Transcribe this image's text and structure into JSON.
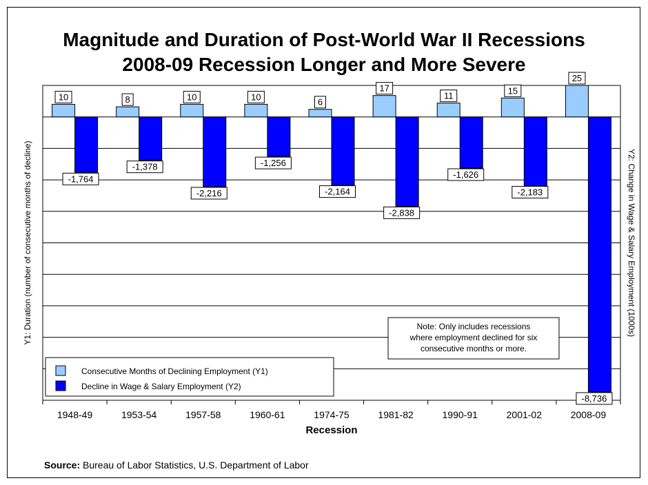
{
  "chart_data": {
    "type": "bar",
    "title": "Magnitude and Duration of Post-World War II Recessions",
    "subtitle": "2008-09 Recession Longer and More Severe",
    "xlabel": "Recession",
    "y1label": "Y1: Duration (number of consecutive months of decline)",
    "y2label": "Y2: Change in Wage & Salary Employment (1000s)",
    "categories": [
      "1948-49",
      "1953-54",
      "1957-58",
      "1960-61",
      "1974-75",
      "1981-82",
      "1990-91",
      "2001-02",
      "2008-09"
    ],
    "series": [
      {
        "name": "Consecutive Months of Declining Employment (Y1)",
        "axis": "y1",
        "color": "#99ccff",
        "values": [
          10,
          8,
          10,
          10,
          6,
          17,
          11,
          15,
          25
        ],
        "labels": [
          "10",
          "8",
          "10",
          "10",
          "6",
          "17",
          "11",
          "15",
          "25"
        ]
      },
      {
        "name": "Decline in Wage & Salary Employment (Y2)",
        "axis": "y2",
        "color": "#0000ff",
        "values": [
          -1764,
          -1378,
          -2216,
          -1256,
          -2164,
          -2838,
          -1626,
          -2183,
          -8736
        ],
        "labels": [
          "-1,764",
          "-1,378",
          "-2,216",
          "-1,256",
          "-2,164",
          "-2,838",
          "-1,626",
          "-2,183",
          "-8,736"
        ]
      }
    ],
    "y1lim": [
      0,
      30
    ],
    "y2lim": [
      -9000,
      1000
    ],
    "grid": true,
    "legend_position": "bottom-left",
    "note": [
      "Note: Only includes recessions",
      "where employment declined for six",
      "consecutive months or more."
    ]
  },
  "source": {
    "label": "Source:",
    "text": " Bureau of Labor Statistics, U.S. Department of Labor"
  }
}
